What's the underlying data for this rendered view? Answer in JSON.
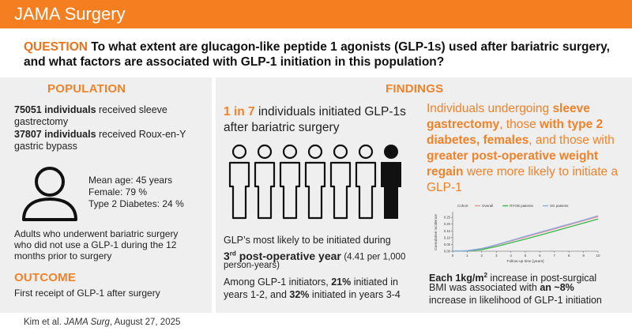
{
  "header": {
    "title": "JAMA Surgery"
  },
  "question": {
    "label": "QUESTION",
    "line1": "To what extent are glucagon-like peptide 1 agonists (GLP-1s) used after bariatric surgery,",
    "line2": "and what factors are associated with GLP-1 initiation in this population?"
  },
  "population": {
    "title": "POPULATION",
    "sleeve_count": "75051 individuals",
    "sleeve_text_1": "received sleeve",
    "sleeve_text_2": "gastrectomy",
    "bypass_count": "37807 individuals",
    "bypass_text_1": "received Roux-en-Y",
    "bypass_text_2": "gastric bypass",
    "mean_age": "Mean age: 45 years",
    "female": "Female: 79 %",
    "diabetes": "Type 2 Diabetes: 24 %",
    "criteria_1": "Adults who underwent bariatric surgery",
    "criteria_2": "who did not use a GLP-1 during the 12",
    "criteria_3": "months prior to surgery"
  },
  "outcome": {
    "title": "OUTCOME",
    "text": "First receipt of GLP-1 after surgery"
  },
  "findings": {
    "title": "FINDINGS",
    "ratio_highlight": "1 in 7",
    "ratio_text_1": "individuals initiated GLP-1s",
    "ratio_text_2": "after bariatric surgery",
    "timing_1": "GLP’s most likely to be initiated during",
    "timing_ord": "3",
    "timing_sup": "rd",
    "timing_bold": "post-operative year",
    "timing_rate_1": "(4.41 per 1,000",
    "timing_rate_2": "person-years)",
    "init_1a": "Among GLP-1 initiators,",
    "init_pct1": "21%",
    "init_1b": "initiated in",
    "init_2a": "years 1-2, and",
    "init_pct2": "32%",
    "init_2b": "initiated in years 3-4",
    "factors_l1": "Individuals undergoing",
    "factors_l1b": "sleeve",
    "factors_l2": "gastrectomy",
    "factors_l2b": ", those",
    "factors_l2c": "with type 2",
    "factors_l3": "diabetes, females",
    "factors_l3b": ", and those with",
    "factors_l4": "greater post-operative weight",
    "factors_l5": "regain",
    "factors_l5b": "were more likely to initiate a",
    "factors_l6": "GLP-1",
    "bmi_1a": "Each 1kg/m",
    "bmi_sup": "2",
    "bmi_1b": "increase in post-surgical",
    "bmi_2a": "BMI was associated with",
    "bmi_2b": "an ~8%",
    "bmi_3": "increase in likelihood of GLP-1 initiation"
  },
  "icons": {
    "people": "person-icons",
    "profile": "person-outline-icon"
  },
  "colors": {
    "accent": "#f57f20",
    "panel": "#efefef",
    "overall": "#f28b8b",
    "rygb": "#3ab54a",
    "sg": "#8aa8e6"
  },
  "chart_data": {
    "type": "line",
    "title": "",
    "legend_title": "Cohort",
    "xlabel": "Follow-up time [years]",
    "ylabel": "Cumulative incidence",
    "x": [
      0,
      1,
      2,
      3,
      4,
      5,
      6,
      7,
      8,
      9,
      10
    ],
    "xticks": [
      "0",
      "1",
      "2",
      "3",
      "4",
      "5",
      "6",
      "7",
      "8",
      "9",
      "10"
    ],
    "yticks": [
      "0.00",
      "0.05",
      "0.10",
      "0.15",
      "0.20",
      "0.25"
    ],
    "ylim": [
      0,
      0.28
    ],
    "series": [
      {
        "name": "Overall",
        "values": [
          0,
          0.003,
          0.018,
          0.045,
          0.075,
          0.105,
          0.135,
          0.165,
          0.195,
          0.225,
          0.255
        ]
      },
      {
        "name": "RYGB patients",
        "values": [
          0,
          0.002,
          0.012,
          0.035,
          0.062,
          0.09,
          0.118,
          0.148,
          0.178,
          0.208,
          0.238
        ]
      },
      {
        "name": "SG patients",
        "values": [
          0,
          0.004,
          0.02,
          0.048,
          0.079,
          0.11,
          0.14,
          0.17,
          0.2,
          0.23,
          0.262
        ]
      }
    ]
  },
  "footer": {
    "authors": "Kim et al.",
    "journal": "JAMA Surg",
    "date": ", August 27, 2025"
  }
}
